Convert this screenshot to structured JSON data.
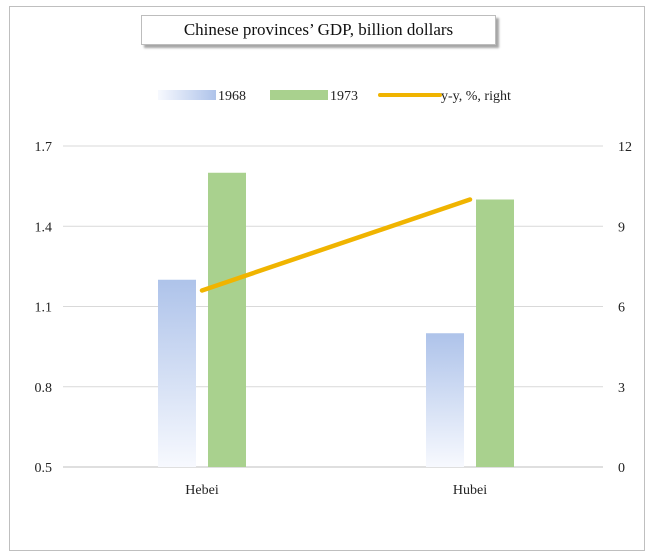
{
  "chart_data": {
    "type": "bar",
    "title": "Chinese provinces’ GDP, billion dollars",
    "categories": [
      "Hebei",
      "Hubei"
    ],
    "series": [
      {
        "name": "1968",
        "type": "bar",
        "axis": "left",
        "values": [
          1.2,
          1.0
        ],
        "color": "#aec3ea"
      },
      {
        "name": "1973",
        "type": "bar",
        "axis": "left",
        "values": [
          1.6,
          1.5
        ],
        "color": "#a9d18e"
      },
      {
        "name": "y-y, %, right",
        "type": "line",
        "axis": "right",
        "values": [
          6.6,
          10.0
        ],
        "color": "#f0b400"
      }
    ],
    "left_axis": {
      "ylim": [
        0.5,
        1.7
      ],
      "ticks": [
        "0.5",
        "0.8",
        "1.1",
        "1.4",
        "1.7"
      ]
    },
    "right_axis": {
      "ylim": [
        0,
        12
      ],
      "ticks": [
        "0",
        "3",
        "6",
        "9",
        "12"
      ]
    },
    "grid": true,
    "legend": "top-center"
  }
}
